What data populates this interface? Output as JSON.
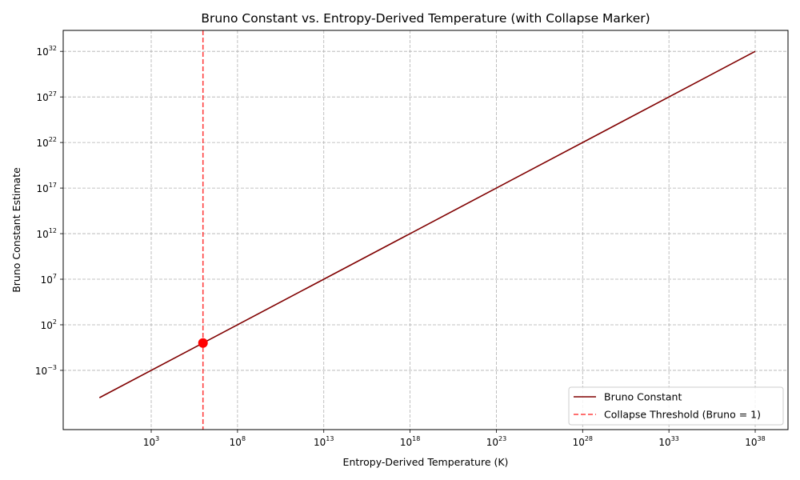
{
  "chart_data": {
    "type": "line",
    "title": "Bruno Constant vs. Entropy-Derived Temperature (with Collapse Marker)",
    "xlabel": "Entropy-Derived Temperature (K)",
    "ylabel": "Bruno Constant Estimate",
    "xscale": "log",
    "yscale": "log",
    "xlim_exp": [
      -2.1,
      39.9
    ],
    "ylim_exp": [
      -9.5,
      34.3
    ],
    "x_tick_exponents": [
      3,
      8,
      13,
      18,
      23,
      28,
      33,
      38
    ],
    "y_tick_exponents": [
      -3,
      2,
      7,
      12,
      17,
      22,
      27,
      32
    ],
    "grid": true,
    "legend_position": "lower-right",
    "series": [
      {
        "name": "Bruno Constant",
        "color": "#800000",
        "x_exp": [
          0,
          38
        ],
        "y_exp": [
          -6,
          32
        ]
      }
    ],
    "threshold": {
      "name": "Collapse Threshold (Bruno = 1)",
      "color": "#ff0000",
      "x_exp": 6
    },
    "marker": {
      "color": "#ff0000",
      "x_exp": 6,
      "y_exp": 0
    }
  }
}
